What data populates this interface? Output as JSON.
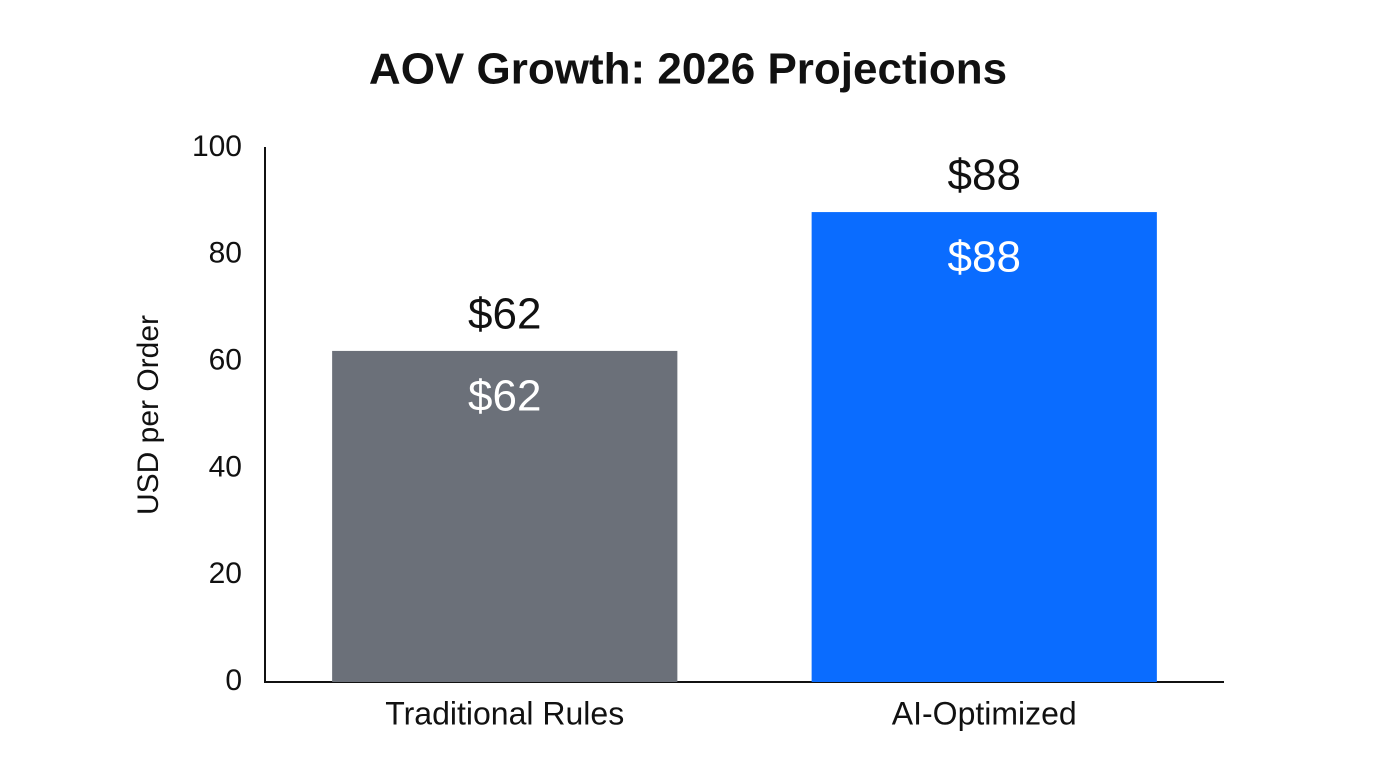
{
  "chart_data": {
    "type": "bar",
    "title": "AOV Growth: 2026 Projections",
    "y_label": "USD per Order",
    "categories": [
      "Traditional Rules",
      "AI-Optimized"
    ],
    "values": [
      62,
      88
    ],
    "value_labels": [
      "$62",
      "$88"
    ],
    "colors": [
      "#6b7079",
      "#0a6cff"
    ],
    "ylim": [
      0,
      100
    ],
    "yticks": [
      0,
      20,
      40,
      60,
      80,
      100
    ],
    "grid": false
  }
}
